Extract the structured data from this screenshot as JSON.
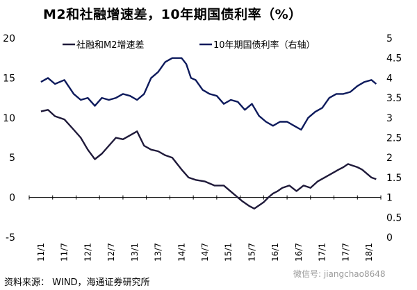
{
  "title": "M2和社融增速差，10年期国债利率（%）",
  "source": "资料来源： WIND，海通证券研究所",
  "watermark": "微信号: jiangchao8648",
  "chart_data": {
    "type": "line",
    "title": "M2和社融增速差，10年期国债利率（%）",
    "legend_position": "top",
    "grid": false,
    "x_categories": [
      "11/1",
      "11/7",
      "12/1",
      "12/7",
      "13/1",
      "13/7",
      "14/1",
      "14/7",
      "15/1",
      "15/7",
      "16/1",
      "16/7",
      "17/1",
      "17/7",
      "18/1"
    ],
    "y_left": {
      "range": [
        -5,
        20
      ],
      "ticks": [
        -5,
        0,
        5,
        10,
        15,
        20
      ]
    },
    "y_right": {
      "range": [
        0,
        5
      ],
      "ticks": [
        0,
        0.5,
        1,
        1.5,
        2,
        2.5,
        3,
        3.5,
        4,
        4.5,
        5
      ]
    },
    "series": [
      {
        "name": "社融和M2增速差",
        "axis": "left",
        "color": "#1f1a3a",
        "x": [
          0,
          0.3,
          0.6,
          1.0,
          1.4,
          1.7,
          2.0,
          2.3,
          2.6,
          2.9,
          3.2,
          3.5,
          3.8,
          4.1,
          4.4,
          4.7,
          5.0,
          5.3,
          5.6,
          6.0,
          6.3,
          6.6,
          7.0,
          7.4,
          7.8,
          8.2,
          8.6,
          8.9,
          9.1,
          9.3,
          9.5,
          9.7,
          9.9,
          10.1,
          10.3,
          10.6,
          10.9,
          11.2,
          11.5,
          11.8,
          12.1,
          12.4,
          12.7,
          12.9,
          13.1,
          13.3,
          13.5,
          13.7,
          13.9,
          14.1,
          14.3
        ],
        "y": [
          10.8,
          11.0,
          10.2,
          9.8,
          8.5,
          7.5,
          6.0,
          4.8,
          5.5,
          6.5,
          7.5,
          7.3,
          7.8,
          8.3,
          6.5,
          6.0,
          5.8,
          5.3,
          5.0,
          3.5,
          2.5,
          2.2,
          2.0,
          1.5,
          1.5,
          0.5,
          -0.5,
          -1.1,
          -1.4,
          -1.0,
          -0.6,
          0.0,
          0.5,
          0.8,
          1.2,
          1.5,
          0.8,
          1.5,
          1.2,
          2.0,
          2.5,
          3.0,
          3.5,
          3.8,
          4.2,
          4.0,
          3.8,
          3.5,
          3.0,
          2.5,
          2.3
        ]
      },
      {
        "name": "10年期国债利率（右轴）",
        "axis": "right",
        "color": "#0d1a5c",
        "x": [
          0,
          0.3,
          0.6,
          1.0,
          1.4,
          1.7,
          2.0,
          2.3,
          2.6,
          2.9,
          3.2,
          3.5,
          3.8,
          4.1,
          4.4,
          4.7,
          5.0,
          5.3,
          5.6,
          6.0,
          6.2,
          6.4,
          6.6,
          6.9,
          7.2,
          7.5,
          7.8,
          8.1,
          8.4,
          8.7,
          9.0,
          9.3,
          9.6,
          9.9,
          10.2,
          10.5,
          10.8,
          11.1,
          11.4,
          11.7,
          12.0,
          12.3,
          12.6,
          12.9,
          13.2,
          13.5,
          13.8,
          14.1,
          14.3
        ],
        "y": [
          3.9,
          4.0,
          3.85,
          3.95,
          3.6,
          3.45,
          3.5,
          3.3,
          3.5,
          3.45,
          3.5,
          3.6,
          3.55,
          3.45,
          3.6,
          4.0,
          4.15,
          4.4,
          4.5,
          4.5,
          4.35,
          4.0,
          3.95,
          3.7,
          3.6,
          3.55,
          3.35,
          3.45,
          3.4,
          3.2,
          3.35,
          3.05,
          2.9,
          2.8,
          2.9,
          2.9,
          2.8,
          2.7,
          3.0,
          3.15,
          3.25,
          3.5,
          3.6,
          3.6,
          3.65,
          3.8,
          3.9,
          3.95,
          3.85
        ]
      }
    ]
  }
}
